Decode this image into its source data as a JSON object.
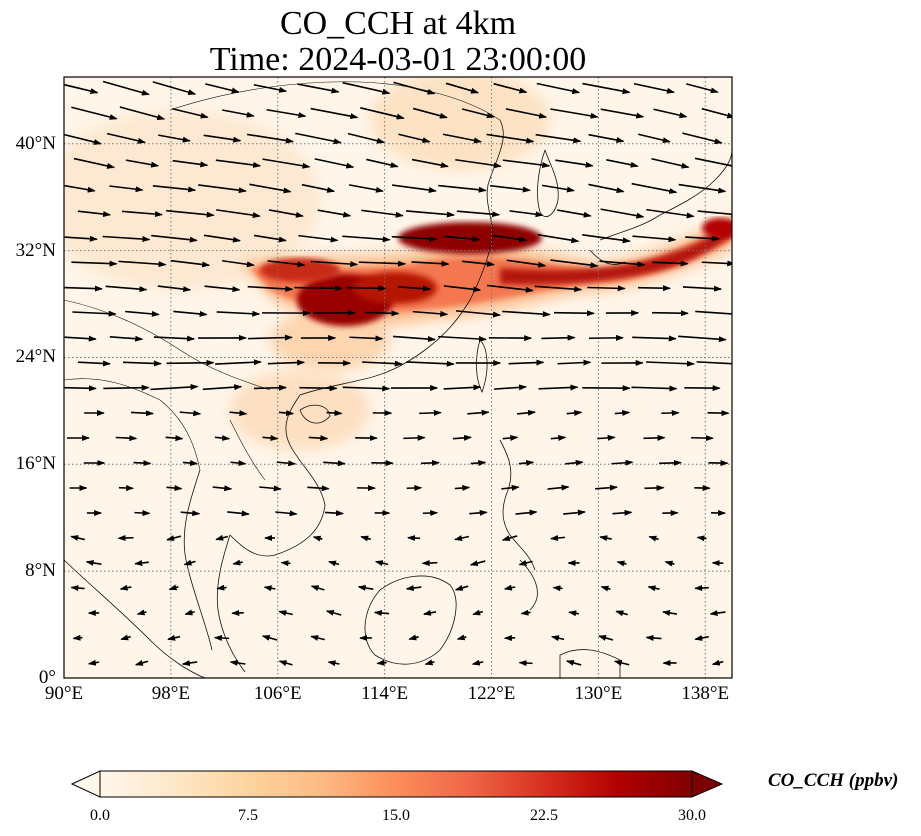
{
  "title": "CO_CCH at 4km",
  "subtitle": "Time: 2024-03-01 23:00:00",
  "map": {
    "lon_range": [
      90,
      140
    ],
    "lat_range": [
      0,
      45
    ],
    "lon_ticks": [
      {
        "value": 90,
        "label": "90°E"
      },
      {
        "value": 98,
        "label": "98°E"
      },
      {
        "value": 106,
        "label": "106°E"
      },
      {
        "value": 114,
        "label": "114°E"
      },
      {
        "value": 122,
        "label": "122°E"
      },
      {
        "value": 130,
        "label": "130°E"
      },
      {
        "value": 138,
        "label": "138°E"
      }
    ],
    "lat_ticks": [
      {
        "value": 0,
        "label": "0°"
      },
      {
        "value": 8,
        "label": "8°N"
      },
      {
        "value": 16,
        "label": "16°N"
      },
      {
        "value": 24,
        "label": "24°N"
      },
      {
        "value": 32,
        "label": "32°N"
      },
      {
        "value": 40,
        "label": "40°N"
      }
    ],
    "gridlines": true,
    "coastlines": true,
    "wind_vectors": true,
    "field_colormap": "OrRd"
  },
  "colorbar": {
    "label": "CO_CCH (ppbv)",
    "min": 0.0,
    "max": 30.0,
    "extend": "both",
    "ticks": [
      "0.0",
      "7.5",
      "15.0",
      "22.5",
      "30.0"
    ],
    "colors": [
      "#fff7ec",
      "#fee8c8",
      "#fdd49e",
      "#fdbb84",
      "#fc8d59",
      "#ef6548",
      "#d7301f",
      "#b30000",
      "#7f0000"
    ]
  },
  "chart_data": {
    "type": "heatmap",
    "title": "CO_CCH at 4km",
    "subtitle": "Time: 2024-03-01 23:00:00",
    "xlim": [
      90,
      140
    ],
    "ylim": [
      0,
      45
    ],
    "units": "ppbv",
    "plumes": [
      {
        "lon": 111.5,
        "lat": 29.0,
        "value": 30
      },
      {
        "lon": 119.0,
        "lat": 33.2,
        "value": 30
      },
      {
        "lon": 125.0,
        "lat": 31.0,
        "value": 22
      },
      {
        "lon": 132.0,
        "lat": 31.5,
        "value": 18
      },
      {
        "lon": 137.0,
        "lat": 33.0,
        "value": 24
      }
    ]
  }
}
